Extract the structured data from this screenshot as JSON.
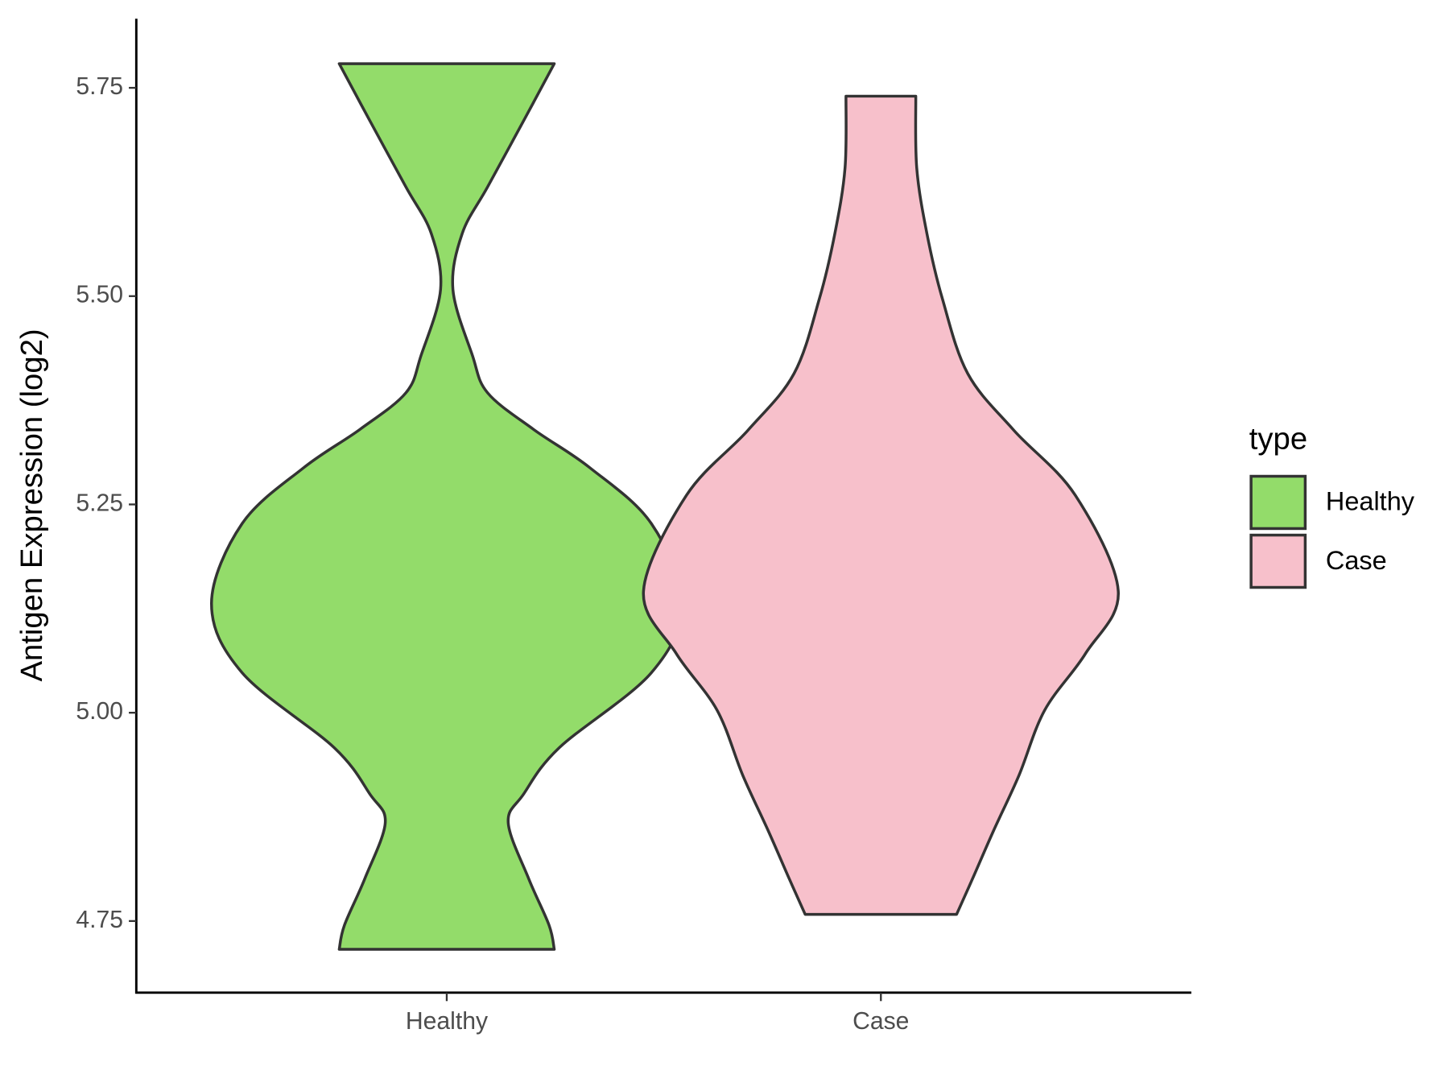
{
  "chart_data": {
    "type": "violin",
    "y_label": "Antigen Expression (log2)",
    "categories": [
      "Healthy",
      "Case"
    ],
    "legend_title": "type",
    "series": [
      {
        "name": "Healthy",
        "color": "#93dc6a",
        "values": [
          5.779,
          5.71,
          5.631,
          5.575,
          5.508,
          5.429,
          5.384,
          5.34,
          5.294,
          5.227,
          5.131,
          5.048,
          4.958,
          4.902,
          4.868,
          4.801,
          4.745,
          4.716
        ],
        "density": [
          0.453,
          0.323,
          0.172,
          0.065,
          0.026,
          0.108,
          0.172,
          0.366,
          0.603,
          0.862,
          0.991,
          0.862,
          0.474,
          0.323,
          0.259,
          0.345,
          0.431,
          0.453
        ]
      },
      {
        "name": "Case",
        "color": "#f7c0cb",
        "values": [
          5.74,
          5.654,
          5.575,
          5.497,
          5.407,
          5.339,
          5.261,
          5.146,
          5.071,
          5.003,
          4.925,
          4.858,
          4.802,
          4.758
        ],
        "density": [
          0.147,
          0.151,
          0.194,
          0.259,
          0.366,
          0.56,
          0.819,
          1,
          0.862,
          0.69,
          0.582,
          0.474,
          0.388,
          0.319
        ]
      }
    ],
    "ylim": [
      4.664,
      5.833
    ],
    "yticks": [
      4.75,
      {
        "value": 5,
        "label": "5.00"
      },
      5.25,
      {
        "value": 5.5,
        "label": "5.50"
      },
      5.75
    ]
  }
}
